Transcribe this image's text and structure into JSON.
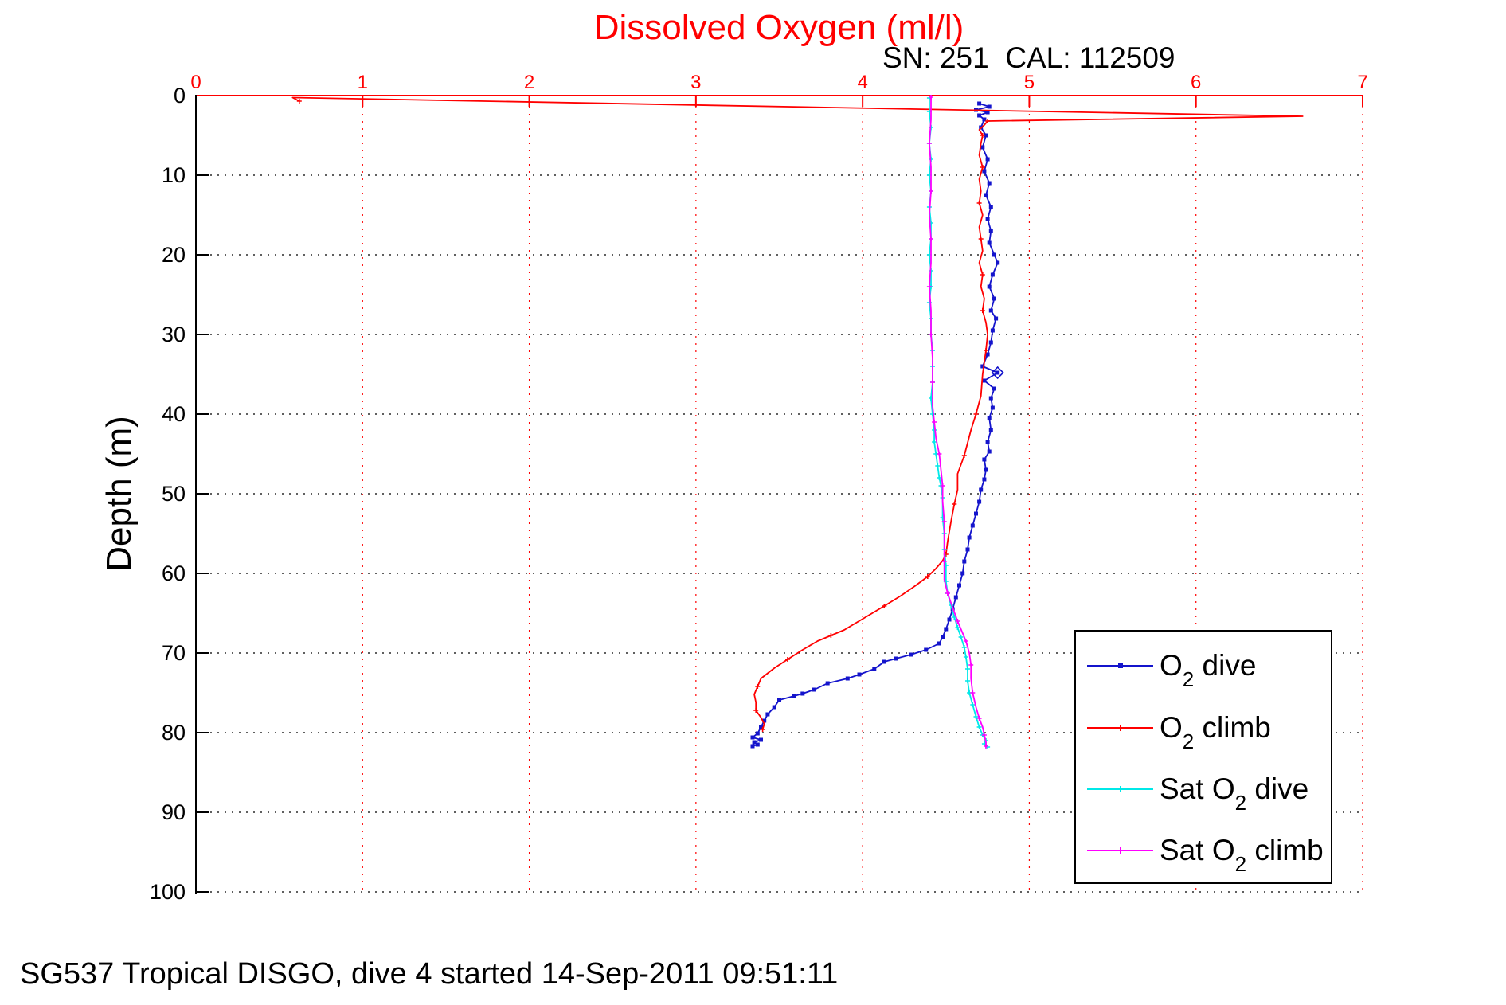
{
  "title": {
    "text": "Dissolved Oxygen (ml/l)",
    "color": "#ff0000"
  },
  "subtitle": {
    "text": "SN: 251  CAL: 112509"
  },
  "caption": {
    "text": "SG537 Tropical DISGO, dive 4 started 14-Sep-2011 09:51:11"
  },
  "y_axis_label": "Depth (m)",
  "legend": {
    "items": [
      {
        "pre": "O",
        "sub": "2",
        "post": " dive",
        "color": "#1414cc",
        "marker": "square"
      },
      {
        "pre": "O",
        "sub": "2",
        "post": " climb",
        "color": "#ff0000",
        "marker": "plus"
      },
      {
        "pre": "Sat O",
        "sub": "2",
        "post": " dive",
        "color": "#00e8e8",
        "marker": "plus"
      },
      {
        "pre": "Sat O",
        "sub": "2",
        "post": " climb",
        "color": "#ff00ff",
        "marker": "plus"
      }
    ]
  },
  "chart_data": {
    "type": "line",
    "title": "Dissolved Oxygen (ml/l)",
    "subtitle": "SN: 251  CAL: 112509",
    "xlabel": "Dissolved Oxygen (ml/l)",
    "ylabel": "Depth (m)",
    "xlim": [
      0,
      7
    ],
    "ylim": [
      0,
      100
    ],
    "x_axis_position": "top",
    "y_axis_inverted": true,
    "grid": true,
    "x_grid_color": "#ff0000",
    "y_grid_color": "#000000",
    "xticks": [
      0,
      1,
      2,
      3,
      4,
      5,
      6,
      7
    ],
    "yticks": [
      0,
      10,
      20,
      30,
      40,
      50,
      60,
      70,
      80,
      90,
      100
    ],
    "legend_position": "lower right inside",
    "series": [
      {
        "name": "O2 dive",
        "color": "#1414cc",
        "marker": "square",
        "marker_every": 1,
        "diamond_point": [
          4.81,
          34.8
        ],
        "points": [
          [
            4.7,
            1.0
          ],
          [
            4.76,
            1.4
          ],
          [
            4.68,
            1.8
          ],
          [
            4.75,
            2.1
          ],
          [
            4.7,
            2.5
          ],
          [
            4.73,
            3.0
          ],
          [
            4.71,
            4.0
          ],
          [
            4.74,
            5.0
          ],
          [
            4.72,
            6.5
          ],
          [
            4.75,
            8.0
          ],
          [
            4.73,
            9.5
          ],
          [
            4.76,
            11
          ],
          [
            4.74,
            12.5
          ],
          [
            4.77,
            14
          ],
          [
            4.75,
            15.5
          ],
          [
            4.77,
            17
          ],
          [
            4.76,
            18.5
          ],
          [
            4.79,
            20
          ],
          [
            4.81,
            21
          ],
          [
            4.78,
            22.5
          ],
          [
            4.76,
            24
          ],
          [
            4.79,
            25.5
          ],
          [
            4.77,
            27
          ],
          [
            4.8,
            28
          ],
          [
            4.78,
            29.5
          ],
          [
            4.77,
            31
          ],
          [
            4.75,
            32.5
          ],
          [
            4.72,
            34
          ],
          [
            4.81,
            34.8
          ],
          [
            4.73,
            35.8
          ],
          [
            4.79,
            36.8
          ],
          [
            4.77,
            38
          ],
          [
            4.78,
            39.2
          ],
          [
            4.76,
            40.5
          ],
          [
            4.77,
            42
          ],
          [
            4.75,
            43.5
          ],
          [
            4.76,
            44.7
          ],
          [
            4.73,
            45.7
          ],
          [
            4.74,
            47
          ],
          [
            4.73,
            48.2
          ],
          [
            4.71,
            49.5
          ],
          [
            4.7,
            51
          ],
          [
            4.68,
            52.5
          ],
          [
            4.66,
            54
          ],
          [
            4.64,
            55.5
          ],
          [
            4.63,
            57
          ],
          [
            4.61,
            58.5
          ],
          [
            4.6,
            60
          ],
          [
            4.58,
            61.5
          ],
          [
            4.56,
            63
          ],
          [
            4.54,
            64.5
          ],
          [
            4.52,
            65.8
          ],
          [
            4.5,
            67
          ],
          [
            4.48,
            68
          ],
          [
            4.46,
            68.8
          ],
          [
            4.38,
            69.6
          ],
          [
            4.29,
            70.2
          ],
          [
            4.2,
            70.7
          ],
          [
            4.13,
            71.1
          ],
          [
            4.07,
            72
          ],
          [
            3.98,
            72.7
          ],
          [
            3.91,
            73.2
          ],
          [
            3.79,
            73.8
          ],
          [
            3.71,
            74.6
          ],
          [
            3.64,
            75.1
          ],
          [
            3.59,
            75.4
          ],
          [
            3.5,
            75.9
          ],
          [
            3.47,
            76.8
          ],
          [
            3.43,
            77.7
          ],
          [
            3.41,
            78.5
          ],
          [
            3.39,
            79.3
          ],
          [
            3.37,
            80.1
          ],
          [
            3.34,
            80.6
          ],
          [
            3.39,
            80.9
          ],
          [
            3.35,
            81.2
          ],
          [
            3.37,
            81.5
          ],
          [
            3.34,
            81.7
          ]
        ]
      },
      {
        "name": "O2 climb",
        "color": "#ff0000",
        "marker": "plus",
        "marker_every": 3,
        "points": [
          [
            3.4,
            79.6
          ],
          [
            3.41,
            78.9
          ],
          [
            3.39,
            78.1
          ],
          [
            3.36,
            77.2
          ],
          [
            3.36,
            76.2
          ],
          [
            3.35,
            75.2
          ],
          [
            3.37,
            74.2
          ],
          [
            3.39,
            73.2
          ],
          [
            3.47,
            71.9
          ],
          [
            3.55,
            70.8
          ],
          [
            3.64,
            69.6
          ],
          [
            3.73,
            68.5
          ],
          [
            3.81,
            67.8
          ],
          [
            3.89,
            67.1
          ],
          [
            4.01,
            65.6
          ],
          [
            4.13,
            64.1
          ],
          [
            4.23,
            62.8
          ],
          [
            4.32,
            61.5
          ],
          [
            4.39,
            60.4
          ],
          [
            4.44,
            59.4
          ],
          [
            4.48,
            58.4
          ],
          [
            4.5,
            57.6
          ],
          [
            4.51,
            56.0
          ],
          [
            4.53,
            53.5
          ],
          [
            4.55,
            51.3
          ],
          [
            4.57,
            49.5
          ],
          [
            4.57,
            47.5
          ],
          [
            4.61,
            45.2
          ],
          [
            4.63,
            43.6
          ],
          [
            4.65,
            42.0
          ],
          [
            4.68,
            40.0
          ],
          [
            4.71,
            37.7
          ],
          [
            4.72,
            35.0
          ],
          [
            4.74,
            32.0
          ],
          [
            4.75,
            30.0
          ],
          [
            4.74,
            28.5
          ],
          [
            4.72,
            27.0
          ],
          [
            4.73,
            25.5
          ],
          [
            4.71,
            24.0
          ],
          [
            4.72,
            22.5
          ],
          [
            4.7,
            21.0
          ],
          [
            4.72,
            19.5
          ],
          [
            4.71,
            18.0
          ],
          [
            4.7,
            16.5
          ],
          [
            4.72,
            15.0
          ],
          [
            4.7,
            13.5
          ],
          [
            4.71,
            12.0
          ],
          [
            4.7,
            10.5
          ],
          [
            4.72,
            9.0
          ],
          [
            4.7,
            7.5
          ],
          [
            4.71,
            6.0
          ],
          [
            4.72,
            5.0
          ],
          [
            4.7,
            4.3
          ],
          [
            4.73,
            3.7
          ],
          [
            4.75,
            3.2
          ],
          [
            6.64,
            2.6
          ],
          [
            0.58,
            0.25
          ],
          [
            0.62,
            0.7
          ]
        ]
      },
      {
        "name": "Sat O2 dive",
        "color": "#00e8e8",
        "marker": "plus",
        "marker_every": 1,
        "points": [
          [
            4.4,
            0.3
          ],
          [
            4.4,
            2
          ],
          [
            4.41,
            4
          ],
          [
            4.4,
            6
          ],
          [
            4.41,
            8
          ],
          [
            4.4,
            10
          ],
          [
            4.41,
            12
          ],
          [
            4.4,
            14
          ],
          [
            4.41,
            16
          ],
          [
            4.41,
            18
          ],
          [
            4.4,
            20
          ],
          [
            4.41,
            22
          ],
          [
            4.41,
            24
          ],
          [
            4.4,
            26
          ],
          [
            4.41,
            28
          ],
          [
            4.41,
            30
          ],
          [
            4.42,
            32
          ],
          [
            4.42,
            34
          ],
          [
            4.42,
            36
          ],
          [
            4.41,
            38
          ],
          [
            4.42,
            40
          ],
          [
            4.43,
            42
          ],
          [
            4.43,
            43.5
          ],
          [
            4.44,
            45
          ],
          [
            4.45,
            46.5
          ],
          [
            4.46,
            48
          ],
          [
            4.47,
            49
          ],
          [
            4.48,
            50.5
          ],
          [
            4.48,
            53
          ],
          [
            4.49,
            55
          ],
          [
            4.49,
            57
          ],
          [
            4.5,
            59
          ],
          [
            4.5,
            61
          ],
          [
            4.51,
            62.5
          ],
          [
            4.53,
            64
          ],
          [
            4.55,
            65.5
          ],
          [
            4.57,
            66.8
          ],
          [
            4.59,
            68
          ],
          [
            4.61,
            69.3
          ],
          [
            4.62,
            70.5
          ],
          [
            4.63,
            72
          ],
          [
            4.63,
            73.5
          ],
          [
            4.64,
            75
          ],
          [
            4.66,
            76.5
          ],
          [
            4.68,
            78
          ],
          [
            4.7,
            79.3
          ],
          [
            4.72,
            80.3
          ],
          [
            4.74,
            81
          ],
          [
            4.73,
            81.4
          ],
          [
            4.75,
            81.8
          ]
        ]
      },
      {
        "name": "Sat O2 climb",
        "color": "#ff00ff",
        "marker": "plus",
        "marker_every": 2,
        "points": [
          [
            4.41,
            0.2
          ],
          [
            4.41,
            3
          ],
          [
            4.4,
            6
          ],
          [
            4.41,
            9
          ],
          [
            4.41,
            12
          ],
          [
            4.4,
            15
          ],
          [
            4.41,
            18
          ],
          [
            4.41,
            21
          ],
          [
            4.4,
            24
          ],
          [
            4.41,
            27
          ],
          [
            4.41,
            30
          ],
          [
            4.42,
            33
          ],
          [
            4.42,
            36
          ],
          [
            4.42,
            39
          ],
          [
            4.43,
            41
          ],
          [
            4.44,
            43
          ],
          [
            4.46,
            45
          ],
          [
            4.47,
            47
          ],
          [
            4.48,
            49
          ],
          [
            4.48,
            51
          ],
          [
            4.49,
            53.5
          ],
          [
            4.49,
            56
          ],
          [
            4.49,
            58.5
          ],
          [
            4.49,
            60.8
          ],
          [
            4.51,
            62.5
          ],
          [
            4.54,
            64.3
          ],
          [
            4.57,
            66
          ],
          [
            4.6,
            67.5
          ],
          [
            4.62,
            68.5
          ],
          [
            4.64,
            70
          ],
          [
            4.65,
            71.5
          ],
          [
            4.65,
            73.2
          ],
          [
            4.66,
            75
          ],
          [
            4.68,
            76.8
          ],
          [
            4.7,
            78.2
          ],
          [
            4.72,
            79.3
          ],
          [
            4.73,
            80.3
          ],
          [
            4.74,
            81.2
          ],
          [
            4.74,
            81.7
          ]
        ]
      }
    ]
  }
}
